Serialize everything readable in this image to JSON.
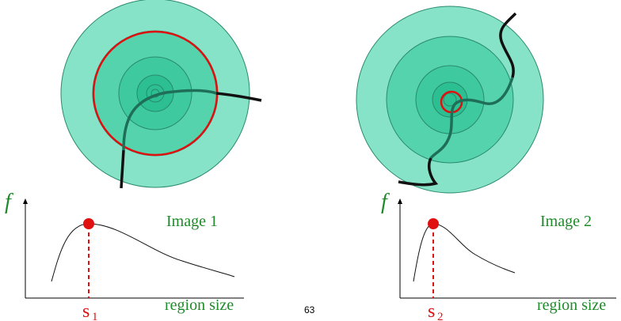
{
  "colors": {
    "region_outer": "#86e3c7",
    "region_ring2": "#55d3ac",
    "region_inner": "#3ec99f",
    "region_core": "#2bbf92",
    "edge": "#2a8a6e",
    "curve_dark": "#111111",
    "curve_teal": "#1e6e58",
    "highlight": "#e01010",
    "label_green": "#1f8a2a"
  },
  "image1": {
    "title": "Image 1",
    "f_label": "f",
    "x_label": "region size",
    "peak_label": "s",
    "peak_sub": "1"
  },
  "image2": {
    "title": "Image 2",
    "f_label": "f",
    "x_label": "region size",
    "peak_label": "s",
    "peak_sub": "2"
  },
  "page_number": "63"
}
